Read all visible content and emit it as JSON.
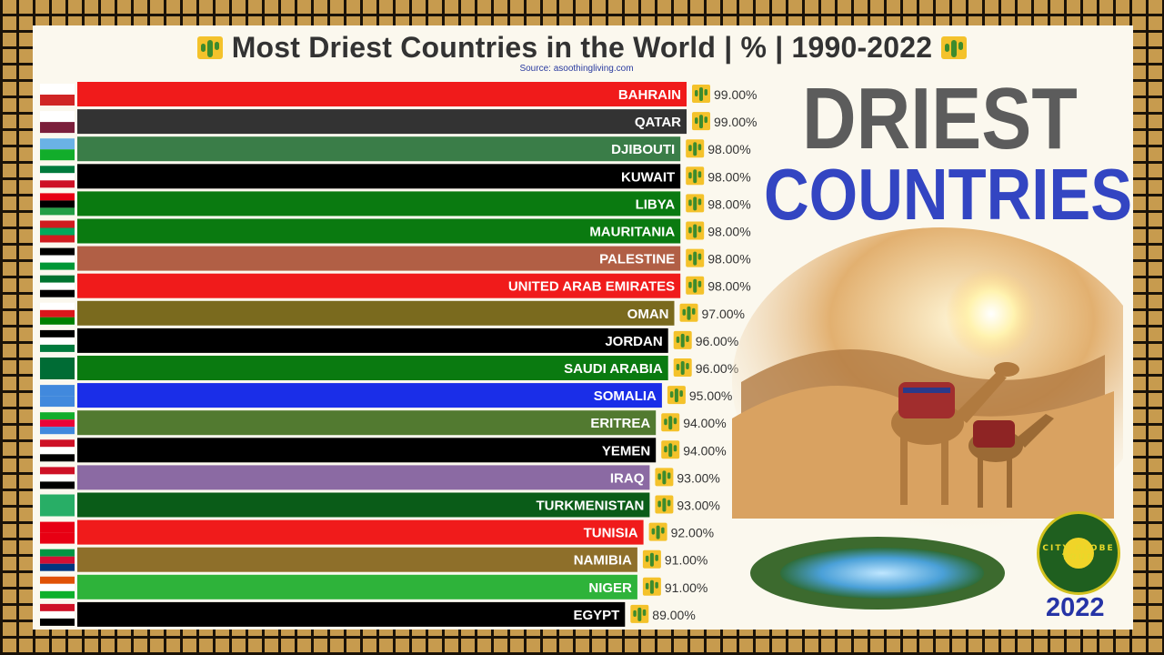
{
  "title": {
    "text": "Most Driest Countries in the World | % | 1990-2022",
    "left_icon": "cactus-icon",
    "right_icon": "cactus-icon"
  },
  "source": "Source: asoothingliving.com",
  "headline": {
    "line1": "DRIEST",
    "line2": "COUNTRIES"
  },
  "year": "2022",
  "logo": {
    "text": "CITY GLOBE TOUR"
  },
  "colors": {
    "frame": "#c79b4e",
    "panel": "#fbf8ee",
    "headline1": "#5c5c5c",
    "headline2": "#3345c2",
    "year": "#2634a6"
  },
  "chart_data": {
    "type": "bar",
    "orientation": "horizontal",
    "title": "Most Driest Countries in the World | % | 1990-2022",
    "unit": "%",
    "value_format": "0.00%",
    "categories": [
      "BAHRAIN",
      "QATAR",
      "DJIBOUTI",
      "KUWAIT",
      "LIBYA",
      "MAURITANIA",
      "PALESTINE",
      "UNITED ARAB EMIRATES",
      "OMAN",
      "JORDAN",
      "SAUDI ARABIA",
      "SOMALIA",
      "ERITREA",
      "YEMEN",
      "IRAQ",
      "TURKMENISTAN",
      "TUNISIA",
      "NAMIBIA",
      "NIGER",
      "EGYPT"
    ],
    "values": [
      99,
      99,
      98,
      98,
      98,
      98,
      98,
      98,
      97,
      96,
      96,
      95,
      94,
      94,
      93,
      93,
      92,
      91,
      91,
      89
    ],
    "value_labels": [
      "99.00%",
      "99.00%",
      "98.00%",
      "98.00%",
      "98.00%",
      "98.00%",
      "98.00%",
      "98.00%",
      "97.00%",
      "96.00%",
      "96.00%",
      "95.00%",
      "94.00%",
      "94.00%",
      "93.00%",
      "93.00%",
      "92.00%",
      "91.00%",
      "91.00%",
      "89.00%"
    ],
    "bar_colors": [
      "#f01b1b",
      "#333333",
      "#3a7d48",
      "#000000",
      "#0a7a10",
      "#0a7a10",
      "#b15f45",
      "#f01b1b",
      "#7a6a1e",
      "#000000",
      "#0a7a10",
      "#1a2ee8",
      "#527a30",
      "#000000",
      "#8b6aa3",
      "#0a5c18",
      "#f01b1b",
      "#8e6f2a",
      "#2eb33a",
      "#000000"
    ],
    "label_colors": [
      "#ffffff",
      "#ffffff",
      "#ffffff",
      "#ffffff",
      "#ffffff",
      "#ffffff",
      "#ffffff",
      "#ffffff",
      "#ffffff",
      "#ffffff",
      "#ffffff",
      "#ffffff",
      "#ffffff",
      "#ffffff",
      "#ffffff",
      "#ffffff",
      "#ffffff",
      "#ffffff",
      "#ffffff",
      "#ffffff"
    ],
    "legend": "none",
    "grid": false
  }
}
